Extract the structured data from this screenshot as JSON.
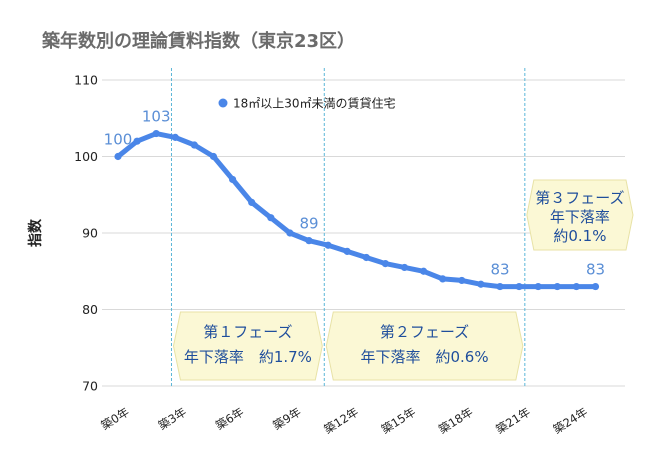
{
  "title": "築年数別の理論賃料指数（東京23区）",
  "chart_data": {
    "type": "line",
    "title": "築年数別の理論賃料指数（東京23区）",
    "ylabel": "指数",
    "xlabel": "",
    "ylim": [
      70,
      110
    ],
    "yticks": [
      70,
      80,
      90,
      100,
      110
    ],
    "xlim": [
      0,
      26
    ],
    "xticks": [
      {
        "x": 0,
        "label": "築0年"
      },
      {
        "x": 3,
        "label": "築3年"
      },
      {
        "x": 6,
        "label": "築6年"
      },
      {
        "x": 9,
        "label": "築9年"
      },
      {
        "x": 12,
        "label": "築12年"
      },
      {
        "x": 15,
        "label": "築15年"
      },
      {
        "x": 18,
        "label": "築18年"
      },
      {
        "x": 21,
        "label": "築21年"
      },
      {
        "x": 24,
        "label": "築24年"
      }
    ],
    "grid": true,
    "legend_position": "top-center",
    "series": [
      {
        "name": "18㎡以上30㎡未満の賃貸住宅",
        "color": "#4a86e8",
        "x": [
          0,
          1,
          2,
          3,
          4,
          5,
          6,
          7,
          8,
          9,
          10,
          11,
          12,
          13,
          14,
          15,
          16,
          17,
          18,
          19,
          20,
          21,
          22,
          23,
          24,
          25
        ],
        "values": [
          100,
          102,
          103,
          102.5,
          101.5,
          100,
          97,
          94,
          92,
          90,
          89,
          88.4,
          87.6,
          86.8,
          86,
          85.5,
          85,
          84,
          83.8,
          83.3,
          83,
          83,
          83,
          83,
          83,
          83
        ]
      }
    ],
    "data_labels": [
      {
        "x": 0,
        "y": 100,
        "text": "100"
      },
      {
        "x": 2,
        "y": 103,
        "text": "103"
      },
      {
        "x": 10,
        "y": 89,
        "text": "89"
      },
      {
        "x": 20,
        "y": 83,
        "text": "83"
      },
      {
        "x": 25,
        "y": 83,
        "text": "83"
      }
    ],
    "phase_lines": [
      2.8,
      10.8,
      21.3
    ],
    "annotations": [
      {
        "lines": [
          "第１フェーズ",
          "年下落率　約1.7%"
        ]
      },
      {
        "lines": [
          "第２フェーズ",
          "年下落率　約0.6%"
        ]
      },
      {
        "lines": [
          "第３フェーズ",
          "年下落率",
          "約0.1%"
        ]
      }
    ],
    "annotation_color": "#fbf8d5"
  }
}
